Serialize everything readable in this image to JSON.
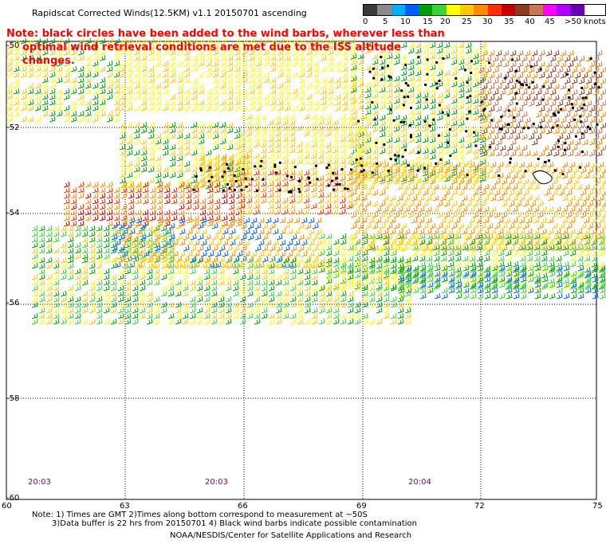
{
  "header": {
    "title": "Rapidscat Corrected Winds(12.5KM) v1.1 20150701 ascending"
  },
  "legend": {
    "colors": [
      "#3a3a3a",
      "#8a8a8a",
      "#00b0f0",
      "#0060ff",
      "#00a000",
      "#3cd23c",
      "#ffff00",
      "#ffc800",
      "#ff8c00",
      "#ff3000",
      "#c80000",
      "#8c3c1e",
      "#c87850",
      "#ff00ff",
      "#b400ff",
      "#6a00b4"
    ],
    "labels": [
      "0",
      "5",
      "10",
      "15",
      "20",
      "25",
      "30",
      "35",
      "40",
      "45",
      ">50 knots"
    ]
  },
  "note": {
    "line1": "Note: black circles have been added to the wind barbs, wherever less than",
    "line2": "optimal wind retrieval conditions are met due to the ISS altitude changes."
  },
  "axes": {
    "lat_labels": [
      "-50",
      "-52",
      "-54",
      "-56",
      "-58",
      "-60"
    ],
    "lon_labels": [
      "60",
      "63",
      "66",
      "69",
      "72",
      "75"
    ]
  },
  "times": [
    "20:03",
    "20:03",
    "20:04"
  ],
  "footer": {
    "line1": "Note: 1) Times are GMT 2)Times along bottom correspond to measurement at ~50S",
    "line2": "3)Data buffer is 22 hrs from 20150701 4) Black wind barbs indicate possible contamination",
    "line3": "NOAA/NESDIS/Center for Satellite Applications and Research"
  }
}
